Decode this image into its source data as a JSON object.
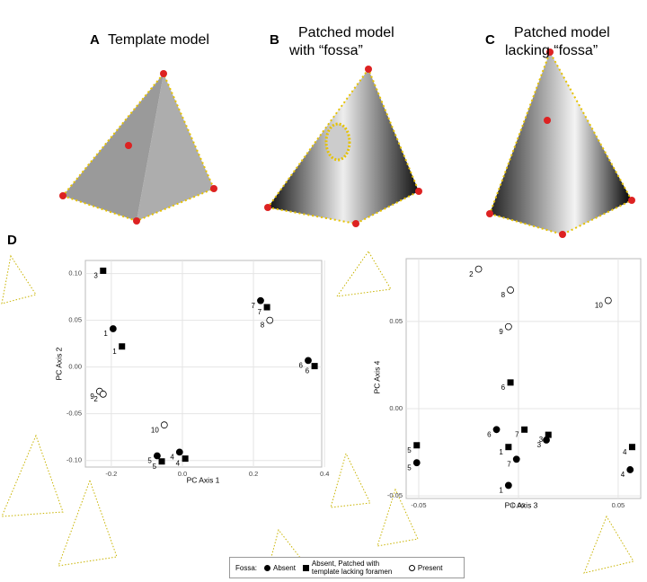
{
  "panels": [
    {
      "letter": "A",
      "title": [
        "Template model"
      ]
    },
    {
      "letter": "B",
      "title": [
        "Patched model",
        "with “fossa”"
      ]
    },
    {
      "letter": "C",
      "title": [
        "Patched model",
        "lacking “fossa”"
      ]
    },
    {
      "letter": "D"
    }
  ],
  "legend_title": "Fossa:",
  "chart_data": [
    {
      "type": "scatter",
      "x_label": "PC Axis 1",
      "y_label": "PC Axis 2",
      "xlim": [
        -0.273,
        0.392
      ],
      "ylim": [
        -0.107,
        0.114
      ],
      "xticks": [
        -0.2,
        {
          "value": 0,
          "label": "0.0"
        },
        0.2,
        0.4
      ],
      "yticks": [
        {
          "value": -0.1,
          "label": "-0.10"
        },
        -0.05,
        {
          "value": 0,
          "label": "0.00"
        },
        0.05,
        {
          "value": 0.1,
          "label": "0.10"
        }
      ],
      "grid": true,
      "series": [
        {
          "name": "Absent",
          "marker": "circle",
          "color": "#000000",
          "x": [
            -0.195,
            -0.071,
            -0.008,
            0.22,
            0.354
          ],
          "values": [
            0.041,
            -0.095,
            -0.091,
            0.071,
            0.007
          ],
          "labels": [
            1,
            5,
            4,
            7,
            6
          ]
        },
        {
          "name": "Absent, Patched with template lacking foramen",
          "marker": "square",
          "color": "#000000",
          "x": [
            -0.223,
            -0.17,
            -0.058,
            0.008,
            0.238,
            0.372
          ],
          "values": [
            0.103,
            0.022,
            -0.101,
            -0.098,
            0.064,
            0.001
          ],
          "labels": [
            3,
            1,
            5,
            4,
            7,
            6
          ]
        },
        {
          "name": "Present",
          "marker": "open-circle",
          "color": "#000000",
          "x": [
            -0.233,
            -0.223,
            -0.051,
            0.246
          ],
          "values": [
            -0.026,
            -0.029,
            -0.062,
            0.05
          ],
          "labels": [
            9,
            2,
            10,
            8
          ]
        }
      ]
    },
    {
      "type": "scatter",
      "x_label": "PC Axis 3",
      "y_label": "PC Axis 4",
      "xlim": [
        -0.0563,
        0.0613
      ],
      "ylim": [
        -0.0515,
        0.086
      ],
      "xticks": [
        -0.05,
        {
          "value": 0,
          "label": "0.00"
        },
        0.05
      ],
      "yticks": [
        -0.05,
        {
          "value": 0,
          "label": "0.00"
        },
        0.05
      ],
      "grid": true,
      "series": [
        {
          "name": "Absent",
          "marker": "circle",
          "color": "#000000",
          "x": [
            -0.011,
            -0.001,
            0.014,
            -0.051,
            -0.005,
            0.056
          ],
          "values": [
            -0.012,
            -0.029,
            -0.018,
            -0.031,
            -0.044,
            -0.035
          ],
          "labels": [
            6,
            7,
            3,
            5,
            1,
            4
          ]
        },
        {
          "name": "Absent, Patched with template lacking foramen",
          "marker": "square",
          "color": "#000000",
          "x": [
            -0.004,
            0.003,
            -0.005,
            0.015,
            -0.051,
            0.057
          ],
          "values": [
            0.015,
            -0.012,
            -0.022,
            -0.015,
            -0.021,
            -0.022
          ],
          "labels": [
            6,
            7,
            1,
            3,
            5,
            4
          ]
        },
        {
          "name": "Present",
          "marker": "open-circle",
          "color": "#000000",
          "x": [
            -0.02,
            -0.004,
            -0.005,
            0.045
          ],
          "values": [
            0.08,
            0.068,
            0.047,
            0.062
          ],
          "labels": [
            2,
            8,
            9,
            10
          ]
        }
      ]
    }
  ]
}
